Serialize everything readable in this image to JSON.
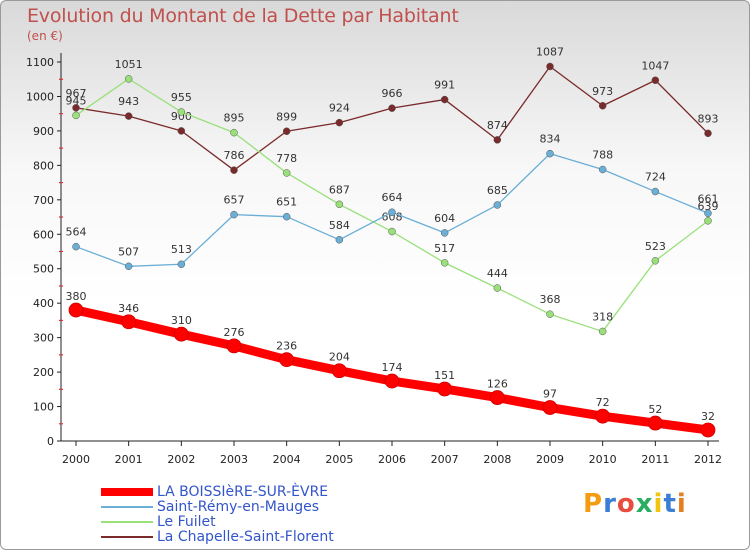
{
  "chart_data": {
    "type": "line",
    "title": "Evolution du Montant de la Dette par Habitant",
    "subtitle": "(en €)",
    "x": [
      "2000",
      "2001",
      "2002",
      "2003",
      "2004",
      "2005",
      "2006",
      "2007",
      "2008",
      "2009",
      "2010",
      "2011",
      "2012"
    ],
    "ylim": [
      0,
      1100
    ],
    "yticks": [
      0,
      100,
      200,
      300,
      400,
      500,
      600,
      700,
      800,
      900,
      1000,
      1100
    ],
    "grid": false,
    "legend_position": "bottom-left",
    "series": [
      {
        "name": "LA BOISSIèRE-SUR-ÈVRE",
        "color": "#ff0000",
        "values": [
          380,
          346,
          310,
          276,
          236,
          204,
          174,
          151,
          126,
          97,
          72,
          52,
          32
        ]
      },
      {
        "name": "Saint-Rémy-en-Mauges",
        "color": "#6baed6",
        "values": [
          564,
          507,
          513,
          657,
          651,
          584,
          664,
          604,
          685,
          834,
          788,
          724,
          661
        ]
      },
      {
        "name": "Le Fuilet",
        "color": "#99e07a",
        "values": [
          945,
          1051,
          955,
          895,
          778,
          687,
          608,
          517,
          444,
          368,
          318,
          523,
          639
        ]
      },
      {
        "name": "La Chapelle-Saint-Florent",
        "color": "#7a2a2a",
        "values": [
          967,
          943,
          900,
          786,
          899,
          924,
          966,
          991,
          874,
          1087,
          973,
          1047,
          893
        ]
      }
    ]
  },
  "logo": {
    "letters": [
      "P",
      "r",
      "o",
      "x",
      "i",
      "t",
      "i"
    ]
  }
}
